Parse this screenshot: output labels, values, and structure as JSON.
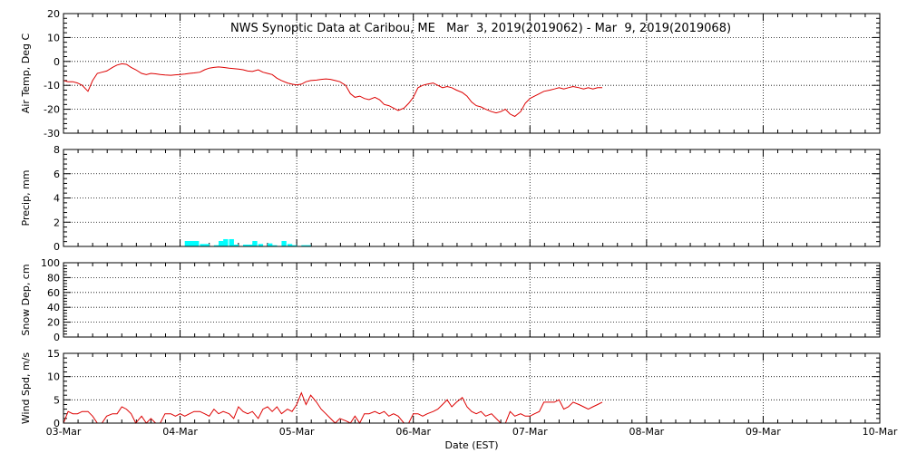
{
  "chart_data": {
    "type": "line",
    "title": "NWS Synoptic Data at Caribou, ME   Mar  3, 2019(2019062) - Mar  9, 2019(2019068)",
    "xlabel": "Date (EST)",
    "x_tick_labels": [
      "03-Mar",
      "04-Mar",
      "05-Mar",
      "06-Mar",
      "07-Mar",
      "08-Mar",
      "09-Mar",
      "10-Mar"
    ],
    "x_unit": "days since 03-Mar 00:00",
    "xlim": [
      0,
      7
    ],
    "grid": true,
    "panels": [
      {
        "name": "air-temp",
        "type": "line",
        "ylabel": "Air Temp, Deg C",
        "ylim": [
          -30,
          20
        ],
        "yticks": [
          20,
          10,
          0,
          -10,
          -20,
          -30
        ],
        "color": "#dd0000",
        "x": [
          0.0,
          0.04,
          0.08,
          0.12,
          0.16,
          0.21,
          0.25,
          0.29,
          0.33,
          0.37,
          0.42,
          0.46,
          0.5,
          0.54,
          0.58,
          0.62,
          0.67,
          0.71,
          0.75,
          0.79,
          0.83,
          0.87,
          0.92,
          0.96,
          1.0,
          1.04,
          1.08,
          1.12,
          1.17,
          1.21,
          1.25,
          1.29,
          1.33,
          1.37,
          1.42,
          1.46,
          1.5,
          1.54,
          1.58,
          1.62,
          1.67,
          1.71,
          1.75,
          1.79,
          1.83,
          1.87,
          1.92,
          1.96,
          2.0,
          2.04,
          2.08,
          2.12,
          2.17,
          2.21,
          2.25,
          2.29,
          2.33,
          2.37,
          2.42,
          2.46,
          2.5,
          2.54,
          2.58,
          2.62,
          2.67,
          2.71,
          2.75,
          2.79,
          2.83,
          2.87,
          2.92,
          2.96,
          3.0,
          3.04,
          3.08,
          3.12,
          3.17,
          3.21,
          3.25,
          3.29,
          3.33,
          3.37,
          3.42,
          3.46,
          3.5,
          3.54,
          3.58,
          3.62,
          3.67,
          3.71,
          3.75,
          3.79,
          3.83,
          3.87,
          3.92,
          3.96,
          4.0,
          4.04,
          4.08,
          4.12,
          4.17,
          4.21,
          4.25,
          4.29,
          4.33,
          4.37,
          4.42,
          4.46,
          4.5,
          4.54,
          4.58,
          4.62
        ],
        "values": [
          -8,
          -8.5,
          -8.5,
          -9,
          -10,
          -12.5,
          -8,
          -5,
          -4.5,
          -4,
          -2.5,
          -1.5,
          -1,
          -1.2,
          -2.5,
          -3.5,
          -5,
          -5.5,
          -5,
          -5.2,
          -5.5,
          -5.7,
          -5.8,
          -5.6,
          -5.5,
          -5.3,
          -5,
          -4.8,
          -4.5,
          -3.5,
          -2.8,
          -2.5,
          -2.3,
          -2.5,
          -2.8,
          -3,
          -3.2,
          -3.5,
          -4,
          -4.2,
          -3.5,
          -4.5,
          -5,
          -5.5,
          -7,
          -8,
          -9,
          -9.5,
          -9.8,
          -9.5,
          -8.5,
          -8,
          -7.8,
          -7.5,
          -7.3,
          -7.5,
          -8,
          -8.5,
          -10,
          -13.5,
          -15,
          -14.5,
          -15.5,
          -16,
          -15,
          -16,
          -18,
          -18.5,
          -19.5,
          -20.5,
          -19.5,
          -17.5,
          -15,
          -11,
          -10,
          -9.5,
          -9,
          -10,
          -11,
          -10.5,
          -11,
          -12,
          -13,
          -14.5,
          -17,
          -18.5,
          -19,
          -20,
          -21,
          -21.5,
          -21,
          -20,
          -22,
          -23,
          -21,
          -17.5,
          -15.5,
          -14.5,
          -13.5,
          -12.5,
          -12,
          -11.5,
          -11,
          -11.5,
          -11,
          -10.5,
          -11,
          -11.5,
          -11,
          -11.5,
          -11,
          -11
        ]
      },
      {
        "name": "precip",
        "type": "bar",
        "ylabel": "Precip, mm",
        "ylim": [
          0,
          8
        ],
        "yticks": [
          8,
          6,
          4,
          2,
          0
        ],
        "color": "#00ffff",
        "bar_width": 0.0417,
        "x": [
          1.04,
          1.08,
          1.12,
          1.17,
          1.21,
          1.29,
          1.33,
          1.37,
          1.42,
          1.46,
          1.54,
          1.58,
          1.62,
          1.67,
          1.75,
          1.79,
          1.87,
          1.92,
          1.96,
          2.04,
          2.08
        ],
        "values": [
          0.45,
          0.45,
          0.45,
          0.2,
          0.2,
          0.1,
          0.45,
          0.6,
          0.6,
          0.15,
          0.15,
          0.15,
          0.45,
          0.2,
          0.25,
          0.1,
          0.45,
          0.2,
          0.1,
          0.1,
          0.1
        ]
      },
      {
        "name": "snow-depth",
        "type": "line",
        "ylabel": "Snow Dep, cm",
        "ylim": [
          0,
          100
        ],
        "yticks": [
          100,
          80,
          60,
          40,
          20,
          0
        ],
        "color": "#dd0000",
        "x": [],
        "values": []
      },
      {
        "name": "wind-speed",
        "type": "line",
        "ylabel": "Wind Spd, m/s",
        "ylim": [
          0,
          15
        ],
        "yticks": [
          15,
          10,
          5,
          0
        ],
        "color": "#dd0000",
        "x": [
          0.0,
          0.04,
          0.08,
          0.12,
          0.16,
          0.21,
          0.25,
          0.29,
          0.33,
          0.37,
          0.42,
          0.46,
          0.5,
          0.54,
          0.58,
          0.62,
          0.67,
          0.71,
          0.75,
          0.79,
          0.83,
          0.87,
          0.92,
          0.96,
          1.0,
          1.04,
          1.08,
          1.12,
          1.17,
          1.21,
          1.25,
          1.29,
          1.33,
          1.37,
          1.42,
          1.46,
          1.5,
          1.54,
          1.58,
          1.62,
          1.67,
          1.71,
          1.75,
          1.79,
          1.83,
          1.87,
          1.92,
          1.96,
          2.0,
          2.04,
          2.08,
          2.12,
          2.17,
          2.21,
          2.25,
          2.29,
          2.33,
          2.37,
          2.42,
          2.46,
          2.5,
          2.54,
          2.58,
          2.62,
          2.67,
          2.71,
          2.75,
          2.79,
          2.83,
          2.87,
          2.92,
          2.96,
          3.0,
          3.04,
          3.08,
          3.12,
          3.17,
          3.21,
          3.25,
          3.29,
          3.33,
          3.37,
          3.42,
          3.46,
          3.5,
          3.54,
          3.58,
          3.62,
          3.67,
          3.71,
          3.75,
          3.79,
          3.83,
          3.87,
          3.92,
          3.96,
          4.0,
          4.04,
          4.08,
          4.12,
          4.17,
          4.21,
          4.25,
          4.29,
          4.33,
          4.37,
          4.42,
          4.46,
          4.5,
          4.54,
          4.58,
          4.62
        ],
        "values": [
          0,
          2.5,
          2,
          2,
          2.5,
          2.5,
          1.5,
          0,
          0,
          1.5,
          2,
          2,
          3.5,
          3,
          2,
          0,
          1.5,
          0,
          1,
          0,
          0,
          2,
          2,
          1.5,
          2,
          1.5,
          2,
          2.5,
          2.5,
          2,
          1.5,
          3,
          2,
          2.5,
          2,
          1,
          3.5,
          2.5,
          2,
          2.5,
          1,
          3,
          3.5,
          2.5,
          3.5,
          2,
          3,
          2.5,
          4,
          6.5,
          4,
          6,
          4.5,
          3,
          2,
          1,
          0,
          1,
          0.5,
          0,
          1.5,
          0,
          2,
          2,
          2.5,
          2,
          2.5,
          1.5,
          2,
          1.5,
          0,
          0,
          2,
          2,
          1.5,
          2,
          2.5,
          3,
          4,
          5,
          3.5,
          4.5,
          5.5,
          3.5,
          2.5,
          2,
          2.5,
          1.5,
          2,
          1,
          0,
          0,
          2.5,
          1.5,
          2,
          1.5,
          1.5,
          2,
          2.5,
          4.5,
          4.5,
          4.5,
          5,
          3,
          3.5,
          4.5,
          4,
          3.5,
          3,
          3.5,
          4,
          4.5
        ]
      }
    ]
  }
}
